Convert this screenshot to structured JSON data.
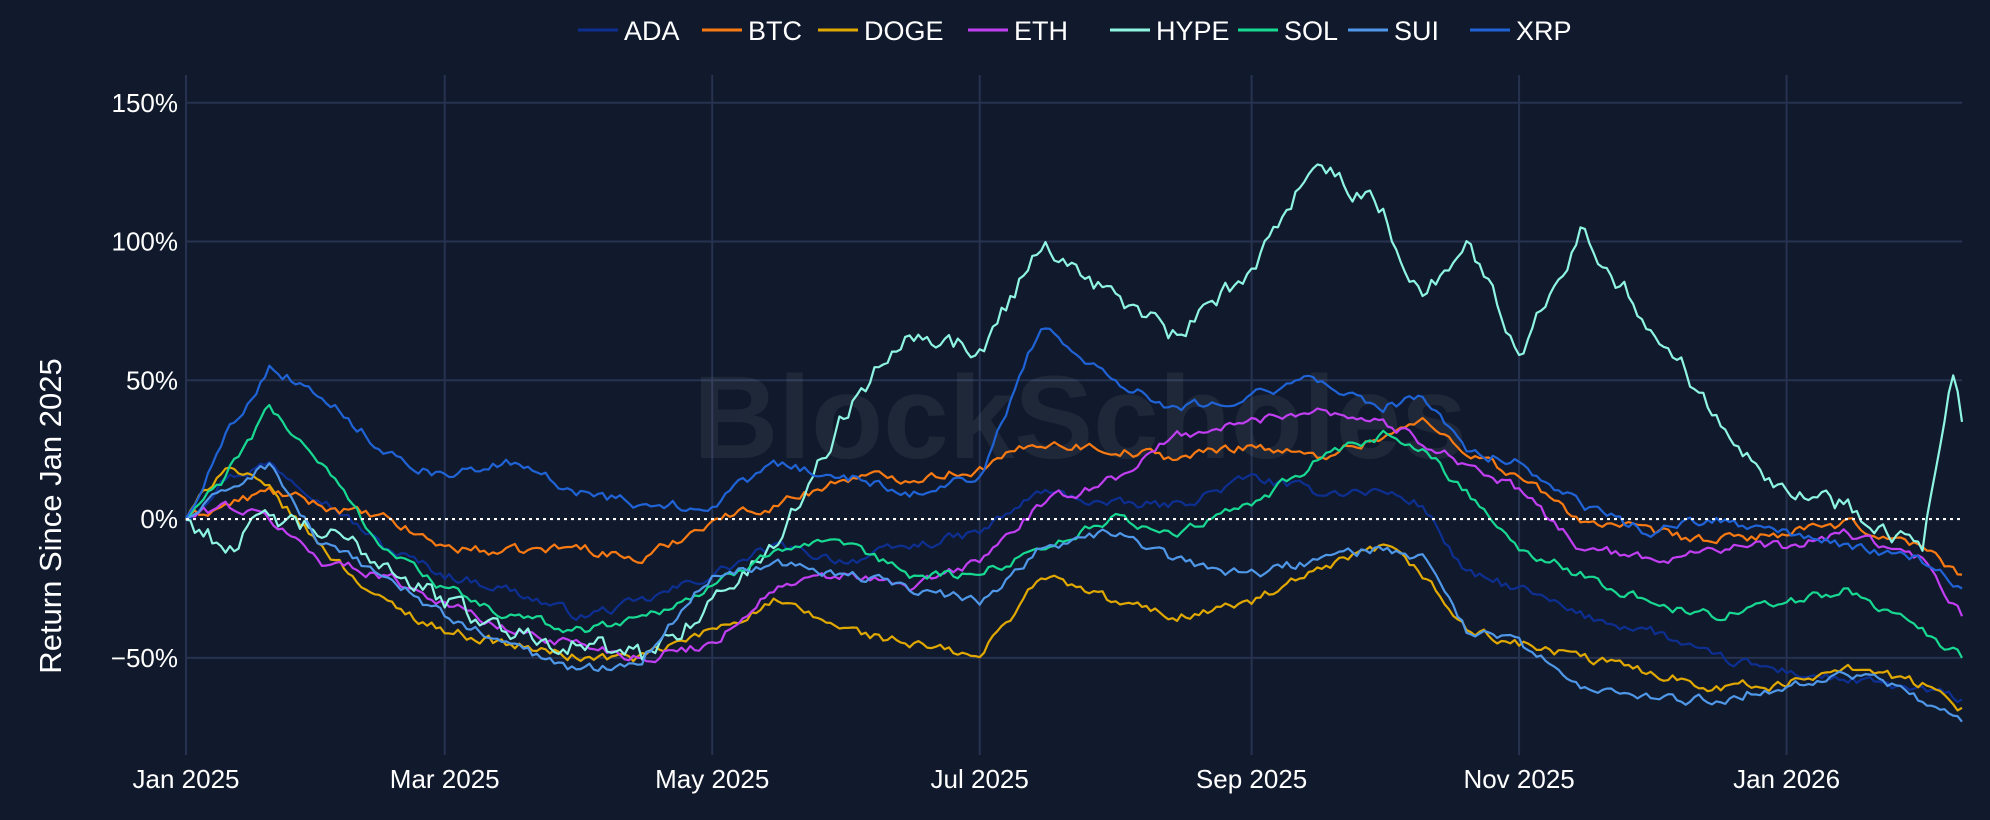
{
  "chart_data": {
    "type": "line",
    "ylabel": "Return Since Jan 2025",
    "watermark": "BlockScholes",
    "legend_position": "top-center",
    "grid": true,
    "zero_line": "dotted",
    "x_tick_labels": [
      "Jan 2025",
      "Mar 2025",
      "May 2025",
      "Jul 2025",
      "Sep 2025",
      "Nov 2025",
      "Jan 2026"
    ],
    "y_tick_labels": [
      "150%",
      "100%",
      "50%",
      "0%",
      "−50%"
    ],
    "ylim": [
      -85,
      160
    ],
    "xlim": [
      "2025-01-01",
      "2026-02-10"
    ],
    "colors": {
      "background": "#111a2c",
      "grid": "#26324f",
      "zero_line": "#ffffff"
    },
    "series": [
      {
        "name": "ADA",
        "color": "#0d2f91",
        "x": [
          "2025-01-01",
          "2025-01-10",
          "2025-01-20",
          "2025-02-01",
          "2025-02-15",
          "2025-03-01",
          "2025-03-15",
          "2025-04-01",
          "2025-04-15",
          "2025-05-01",
          "2025-05-15",
          "2025-06-01",
          "2025-06-15",
          "2025-07-01",
          "2025-07-15",
          "2025-08-01",
          "2025-08-15",
          "2025-09-01",
          "2025-09-15",
          "2025-10-01",
          "2025-10-10",
          "2025-10-20",
          "2025-11-01",
          "2025-11-15",
          "2025-12-01",
          "2025-12-15",
          "2026-01-01",
          "2026-01-15",
          "2026-02-01",
          "2026-02-10"
        ],
        "values": [
          0,
          15,
          20,
          8,
          -10,
          -20,
          -25,
          -35,
          -30,
          -20,
          -10,
          -15,
          -10,
          -5,
          10,
          5,
          5,
          15,
          10,
          10,
          5,
          -20,
          -25,
          -35,
          -40,
          -50,
          -55,
          -58,
          -62,
          -65
        ]
      },
      {
        "name": "BTC",
        "color": "#f97a12",
        "x": [
          "2025-01-01",
          "2025-01-10",
          "2025-01-20",
          "2025-02-01",
          "2025-02-15",
          "2025-03-01",
          "2025-03-15",
          "2025-04-01",
          "2025-04-15",
          "2025-05-01",
          "2025-05-15",
          "2025-06-01",
          "2025-06-15",
          "2025-07-01",
          "2025-07-15",
          "2025-08-01",
          "2025-08-15",
          "2025-09-01",
          "2025-09-15",
          "2025-10-01",
          "2025-10-10",
          "2025-10-20",
          "2025-11-01",
          "2025-11-15",
          "2025-12-01",
          "2025-12-15",
          "2026-01-01",
          "2026-01-15",
          "2026-02-01",
          "2026-02-10"
        ],
        "values": [
          0,
          5,
          10,
          5,
          0,
          -10,
          -12,
          -10,
          -15,
          0,
          5,
          15,
          15,
          18,
          28,
          25,
          22,
          27,
          22,
          30,
          35,
          25,
          15,
          0,
          -5,
          -8,
          -5,
          -2,
          -10,
          -20
        ]
      },
      {
        "name": "DOGE",
        "color": "#e0a800",
        "x": [
          "2025-01-01",
          "2025-01-10",
          "2025-01-20",
          "2025-02-01",
          "2025-02-15",
          "2025-03-01",
          "2025-03-15",
          "2025-04-01",
          "2025-04-15",
          "2025-05-01",
          "2025-05-15",
          "2025-06-01",
          "2025-06-15",
          "2025-07-01",
          "2025-07-15",
          "2025-08-01",
          "2025-08-15",
          "2025-09-01",
          "2025-09-15",
          "2025-10-01",
          "2025-10-10",
          "2025-10-20",
          "2025-11-01",
          "2025-11-15",
          "2025-12-01",
          "2025-12-15",
          "2026-01-01",
          "2026-01-15",
          "2026-02-01",
          "2026-02-10"
        ],
        "values": [
          0,
          20,
          10,
          -10,
          -30,
          -40,
          -45,
          -50,
          -50,
          -40,
          -30,
          -40,
          -45,
          -50,
          -20,
          -30,
          -35,
          -30,
          -20,
          -10,
          -20,
          -40,
          -45,
          -50,
          -55,
          -60,
          -60,
          -52,
          -60,
          -68
        ]
      },
      {
        "name": "ETH",
        "color": "#c13ef2",
        "x": [
          "2025-01-01",
          "2025-01-10",
          "2025-01-20",
          "2025-02-01",
          "2025-02-15",
          "2025-03-01",
          "2025-03-15",
          "2025-04-01",
          "2025-04-15",
          "2025-05-01",
          "2025-05-15",
          "2025-06-01",
          "2025-06-15",
          "2025-07-01",
          "2025-07-15",
          "2025-08-01",
          "2025-08-15",
          "2025-09-01",
          "2025-09-15",
          "2025-10-01",
          "2025-10-10",
          "2025-10-20",
          "2025-11-01",
          "2025-11-15",
          "2025-12-01",
          "2025-12-15",
          "2026-01-01",
          "2026-01-15",
          "2026-02-01",
          "2026-02-10"
        ],
        "values": [
          0,
          5,
          0,
          -15,
          -20,
          -30,
          -40,
          -45,
          -50,
          -45,
          -25,
          -20,
          -25,
          -15,
          5,
          15,
          30,
          35,
          40,
          35,
          28,
          20,
          10,
          -10,
          -15,
          -10,
          -10,
          -5,
          -15,
          -35
        ]
      },
      {
        "name": "HYPE",
        "color": "#8ff5e3",
        "x": [
          "2025-01-01",
          "2025-01-10",
          "2025-01-20",
          "2025-02-01",
          "2025-02-15",
          "2025-03-01",
          "2025-03-15",
          "2025-04-01",
          "2025-04-15",
          "2025-05-01",
          "2025-05-15",
          "2025-06-01",
          "2025-06-15",
          "2025-07-01",
          "2025-07-15",
          "2025-08-01",
          "2025-08-15",
          "2025-09-01",
          "2025-09-15",
          "2025-10-01",
          "2025-10-10",
          "2025-10-20",
          "2025-11-01",
          "2025-11-15",
          "2025-12-01",
          "2025-12-15",
          "2026-01-01",
          "2026-01-15",
          "2026-02-01",
          "2026-02-08",
          "2026-02-10"
        ],
        "values": [
          0,
          -10,
          0,
          -5,
          -15,
          -30,
          -40,
          -45,
          -50,
          -30,
          -10,
          40,
          70,
          60,
          100,
          80,
          65,
          90,
          130,
          110,
          80,
          100,
          60,
          105,
          70,
          40,
          10,
          5,
          -10,
          50,
          35
        ]
      },
      {
        "name": "SOL",
        "color": "#18d992",
        "x": [
          "2025-01-01",
          "2025-01-10",
          "2025-01-20",
          "2025-02-01",
          "2025-02-15",
          "2025-03-01",
          "2025-03-15",
          "2025-04-01",
          "2025-04-15",
          "2025-05-01",
          "2025-05-15",
          "2025-06-01",
          "2025-06-15",
          "2025-07-01",
          "2025-07-15",
          "2025-08-01",
          "2025-08-15",
          "2025-09-01",
          "2025-09-15",
          "2025-10-01",
          "2025-10-10",
          "2025-10-20",
          "2025-11-01",
          "2025-11-15",
          "2025-12-01",
          "2025-12-15",
          "2026-01-01",
          "2026-01-15",
          "2026-02-01",
          "2026-02-10"
        ],
        "values": [
          0,
          15,
          40,
          20,
          -10,
          -25,
          -35,
          -40,
          -35,
          -25,
          -10,
          -10,
          -20,
          -20,
          -10,
          0,
          -5,
          5,
          20,
          30,
          25,
          10,
          -10,
          -20,
          -30,
          -35,
          -30,
          -25,
          -40,
          -50
        ]
      },
      {
        "name": "SUI",
        "color": "#4f97e8",
        "x": [
          "2025-01-01",
          "2025-01-10",
          "2025-01-20",
          "2025-02-01",
          "2025-02-15",
          "2025-03-01",
          "2025-03-15",
          "2025-04-01",
          "2025-04-15",
          "2025-05-01",
          "2025-05-15",
          "2025-06-01",
          "2025-06-15",
          "2025-07-01",
          "2025-07-15",
          "2025-08-01",
          "2025-08-15",
          "2025-09-01",
          "2025-09-15",
          "2025-10-01",
          "2025-10-10",
          "2025-10-20",
          "2025-11-01",
          "2025-11-15",
          "2025-12-01",
          "2025-12-15",
          "2026-01-01",
          "2026-01-15",
          "2026-02-01",
          "2026-02-10"
        ],
        "values": [
          0,
          10,
          20,
          -10,
          -20,
          -35,
          -45,
          -55,
          -50,
          -20,
          -15,
          -20,
          -25,
          -30,
          -10,
          -5,
          -15,
          -20,
          -15,
          -10,
          -15,
          -40,
          -45,
          -60,
          -65,
          -65,
          -60,
          -55,
          -65,
          -73
        ]
      },
      {
        "name": "XRP",
        "color": "#1f63d6",
        "x": [
          "2025-01-01",
          "2025-01-10",
          "2025-01-20",
          "2025-02-01",
          "2025-02-15",
          "2025-03-01",
          "2025-03-15",
          "2025-04-01",
          "2025-04-15",
          "2025-05-01",
          "2025-05-15",
          "2025-06-01",
          "2025-06-15",
          "2025-07-01",
          "2025-07-15",
          "2025-08-01",
          "2025-08-15",
          "2025-09-01",
          "2025-09-15",
          "2025-10-01",
          "2025-10-10",
          "2025-10-20",
          "2025-11-01",
          "2025-11-15",
          "2025-12-01",
          "2025-12-15",
          "2026-01-01",
          "2026-01-15",
          "2026-02-01",
          "2026-02-10"
        ],
        "values": [
          0,
          30,
          55,
          45,
          25,
          15,
          20,
          10,
          5,
          5,
          20,
          15,
          10,
          15,
          70,
          50,
          40,
          45,
          50,
          40,
          45,
          25,
          20,
          5,
          -5,
          0,
          -5,
          -10,
          -15,
          -25
        ]
      }
    ]
  }
}
